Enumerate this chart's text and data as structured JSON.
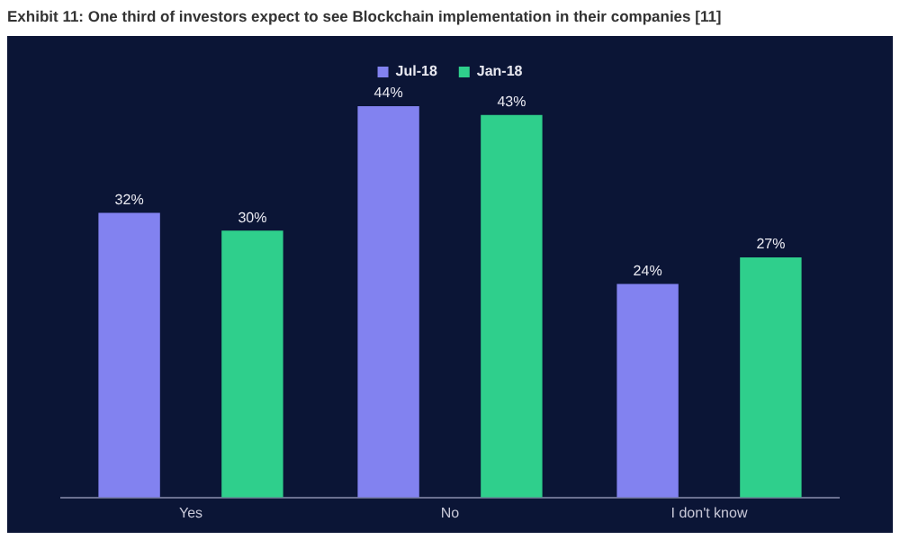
{
  "chart_data": {
    "type": "bar",
    "title": "Exhibit 11: One third of investors expect to see Blockchain implementation in their companies [11]",
    "categories": [
      "Yes",
      "No",
      "I don't know"
    ],
    "series": [
      {
        "name": "Jul-18",
        "color": "#8282f0",
        "values": [
          32,
          44,
          24
        ],
        "value_labels": [
          "32%",
          "44%",
          "24%"
        ]
      },
      {
        "name": "Jan-18",
        "color": "#2fcf8c",
        "values": [
          30,
          43,
          27
        ],
        "value_labels": [
          "30%",
          "43%",
          "27%"
        ]
      }
    ],
    "legend": "top",
    "grid": false,
    "tick_labels": "x"
  }
}
